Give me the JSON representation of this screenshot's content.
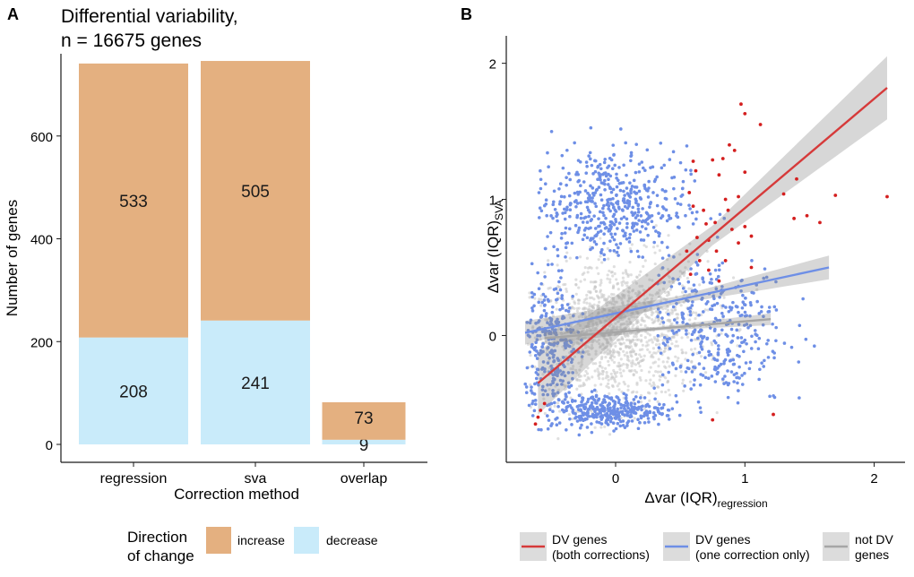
{
  "chart_data": [
    {
      "panel_label": "A",
      "type": "bar",
      "stacked": true,
      "title_line1": "Differential variability,",
      "title_line2": "n = 16675 genes",
      "xlabel": "Correction method",
      "ylabel": "Number of genes",
      "categories": [
        "regression",
        "sva",
        "overlap"
      ],
      "series": [
        {
          "name": "decrease",
          "color": "#c9ebfa",
          "values": [
            208,
            241,
            9
          ]
        },
        {
          "name": "increase",
          "color": "#e4b080",
          "values": [
            533,
            505,
            73
          ]
        }
      ],
      "ylim": [
        0,
        760
      ],
      "yticks": [
        0,
        200,
        400,
        600
      ],
      "legend": {
        "title_line1": "Direction",
        "title_line2": "of change",
        "items": [
          {
            "label": "increase",
            "color": "#e4b080"
          },
          {
            "label": "decrease",
            "color": "#c9ebfa"
          }
        ]
      }
    },
    {
      "panel_label": "B",
      "type": "scatter",
      "xlabel_main": "Δvar (IQR)",
      "xlabel_sub": "regression",
      "ylabel_main": "Δvar (IQR)",
      "ylabel_sub": "SVA",
      "xlim": [
        -0.72,
        2.18
      ],
      "ylim": [
        -0.8,
        2.07
      ],
      "xticks": [
        0,
        1,
        2
      ],
      "yticks": [
        0,
        1,
        2
      ],
      "fits": [
        {
          "name": "not DV genes",
          "color": "#a6a6a6",
          "x": [
            -0.55,
            1.2
          ],
          "y": [
            -0.02,
            0.12
          ],
          "band": 0.03
        },
        {
          "name": "DV genes (one correction only)",
          "color": "#6e8fe6",
          "x": [
            -0.7,
            1.65
          ],
          "y": [
            0.02,
            0.5
          ],
          "band": 0.06
        },
        {
          "name": "DV genes (both corrections)",
          "color": "#d63a3a",
          "x": [
            -0.6,
            2.1
          ],
          "y": [
            -0.35,
            1.82
          ],
          "band": 0.16
        }
      ],
      "red_points": [
        [
          0.97,
          1.7
        ],
        [
          1.0,
          1.63
        ],
        [
          1.12,
          1.55
        ],
        [
          0.88,
          1.4
        ],
        [
          0.92,
          1.36
        ],
        [
          0.6,
          1.28
        ],
        [
          0.62,
          1.21
        ],
        [
          0.75,
          1.29
        ],
        [
          0.8,
          1.18
        ],
        [
          0.83,
          1.3
        ],
        [
          1.0,
          1.2
        ],
        [
          1.3,
          1.04
        ],
        [
          1.4,
          1.15
        ],
        [
          1.7,
          1.03
        ],
        [
          2.1,
          1.02
        ],
        [
          1.38,
          0.86
        ],
        [
          1.48,
          0.88
        ],
        [
          1.58,
          0.83
        ],
        [
          0.6,
          0.95
        ],
        [
          0.7,
          0.82
        ],
        [
          0.72,
          0.7
        ],
        [
          0.63,
          0.72
        ],
        [
          0.78,
          0.62
        ],
        [
          0.85,
          0.55
        ],
        [
          0.95,
          0.68
        ],
        [
          1.05,
          0.73
        ],
        [
          0.55,
          0.62
        ],
        [
          0.65,
          0.55
        ],
        [
          0.9,
          0.78
        ],
        [
          1.0,
          0.8
        ],
        [
          0.8,
          0.4
        ],
        [
          0.72,
          0.48
        ],
        [
          0.58,
          0.45
        ],
        [
          1.05,
          0.5
        ],
        [
          0.68,
          0.92
        ],
        [
          0.87,
          0.92
        ],
        [
          -0.6,
          -0.6
        ],
        [
          -0.62,
          -0.65
        ],
        [
          -0.58,
          -0.55
        ],
        [
          -0.55,
          -0.5
        ],
        [
          0.75,
          -0.62
        ],
        [
          1.22,
          -0.58
        ],
        [
          0.85,
          1.0
        ],
        [
          0.95,
          1.02
        ],
        [
          0.57,
          1.05
        ],
        [
          0.77,
          0.83
        ]
      ],
      "legend": [
        {
          "line1": "DV genes",
          "line2": "(both corrections)",
          "color": "#d63a3a"
        },
        {
          "line1": "DV genes",
          "line2": "(one correction only)",
          "color": "#6e8fe6"
        },
        {
          "line1": "not DV",
          "line2": "genes",
          "color": "#a6a6a6"
        }
      ]
    }
  ]
}
